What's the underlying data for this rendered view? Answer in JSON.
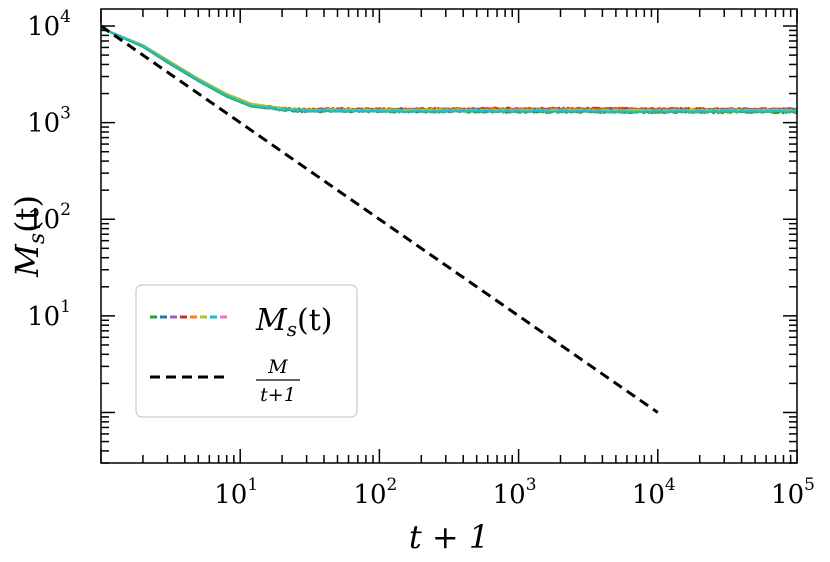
{
  "chart_data": {
    "type": "line",
    "title": "",
    "xlabel": "t + 1",
    "ylabel_main": "M",
    "ylabel_sub": "s",
    "ylabel_arg": "(t)",
    "xscale": "log",
    "yscale": "log",
    "xlim": [
      1,
      100000
    ],
    "ylim": [
      0.3,
      15000
    ],
    "x_ticks": [
      {
        "value": 10,
        "base": "10",
        "exp": "1"
      },
      {
        "value": 100,
        "base": "10",
        "exp": "2"
      },
      {
        "value": 1000,
        "base": "10",
        "exp": "3"
      },
      {
        "value": 10000,
        "base": "10",
        "exp": "4"
      },
      {
        "value": 100000,
        "base": "10",
        "exp": "5"
      }
    ],
    "y_ticks": [
      {
        "value": 10,
        "base": "10",
        "exp": "1"
      },
      {
        "value": 100,
        "base": "10",
        "exp": "2"
      },
      {
        "value": 1000,
        "base": "10",
        "exp": "3"
      },
      {
        "value": 10000,
        "base": "10",
        "exp": "4"
      }
    ],
    "series": [
      {
        "color": "#d62728",
        "x": [
          1,
          2,
          3,
          5,
          8,
          12,
          20,
          30,
          50,
          100,
          1000,
          10000,
          100000
        ],
        "y": [
          9500,
          6300,
          4400,
          2800,
          1950,
          1550,
          1400,
          1370,
          1390,
          1380,
          1400,
          1390,
          1380
        ]
      },
      {
        "color": "#1f77b4",
        "x": [
          1,
          2,
          3,
          5,
          8,
          12,
          20,
          30,
          50,
          100,
          1000,
          10000,
          100000
        ],
        "y": [
          9500,
          6200,
          4300,
          2750,
          1900,
          1500,
          1380,
          1340,
          1350,
          1360,
          1370,
          1360,
          1370
        ]
      },
      {
        "color": "#9467bd",
        "x": [
          1,
          2,
          3,
          5,
          8,
          12,
          20,
          30,
          50,
          100,
          1000,
          10000,
          100000
        ],
        "y": [
          9500,
          6250,
          4350,
          2780,
          1920,
          1520,
          1390,
          1360,
          1370,
          1350,
          1360,
          1350,
          1360
        ]
      },
      {
        "color": "#ff7f0e",
        "x": [
          1,
          2,
          3,
          5,
          8,
          12,
          20,
          30,
          50,
          100,
          1000,
          10000,
          100000
        ],
        "y": [
          9500,
          6150,
          4250,
          2720,
          1880,
          1490,
          1370,
          1330,
          1340,
          1340,
          1350,
          1340,
          1330
        ]
      },
      {
        "color": "#2ca02c",
        "x": [
          1,
          2,
          3,
          5,
          8,
          12,
          20,
          30,
          50,
          100,
          1000,
          10000,
          100000
        ],
        "y": [
          9500,
          6100,
          4200,
          2700,
          1860,
          1470,
          1350,
          1300,
          1310,
          1300,
          1290,
          1280,
          1280
        ]
      },
      {
        "color": "#bcbd22",
        "x": [
          1,
          2,
          3,
          5,
          8,
          12,
          20,
          30,
          50,
          100,
          1000,
          10000,
          100000
        ],
        "y": [
          9500,
          6350,
          4450,
          2850,
          1980,
          1570,
          1410,
          1360,
          1350,
          1350,
          1340,
          1340,
          1340
        ]
      },
      {
        "color": "#17becf",
        "x": [
          1,
          2,
          3,
          5,
          8,
          12,
          20,
          30,
          50,
          100,
          1000,
          10000,
          100000
        ],
        "y": [
          9500,
          6200,
          4300,
          2760,
          1900,
          1500,
          1370,
          1330,
          1320,
          1310,
          1310,
          1300,
          1310
        ]
      }
    ],
    "reference_line": {
      "color": "#000000",
      "style": "dashed",
      "x": [
        1,
        10000
      ],
      "y": [
        10000,
        1
      ]
    },
    "legend": {
      "placement": "lower-left",
      "entries": [
        {
          "label_main": "M",
          "label_sub": "s",
          "label_arg": "(t)",
          "colors": [
            "#2ca02c",
            "#1f77b4",
            "#9467bd",
            "#d62728",
            "#ff7f0e",
            "#bcbd22",
            "#17becf",
            "#e377c2"
          ]
        },
        {
          "label_numerator": "M",
          "label_denominator": "t+1",
          "color": "#000000",
          "style": "dashed"
        }
      ]
    }
  }
}
